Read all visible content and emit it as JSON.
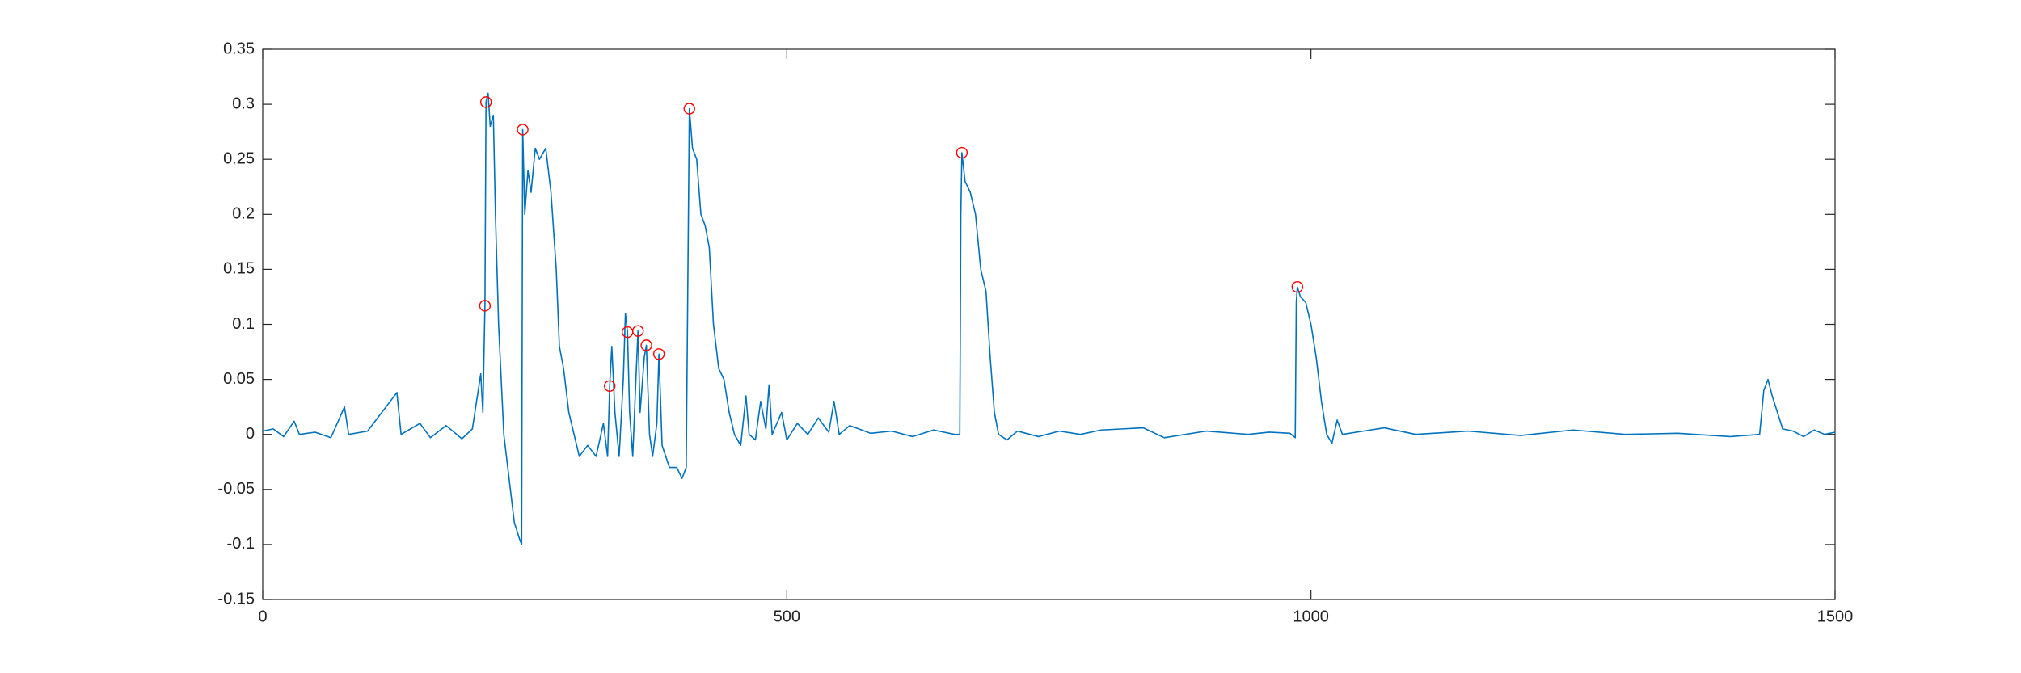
{
  "chart_data": {
    "type": "line",
    "x": [
      0,
      10,
      20,
      30,
      35,
      50,
      65,
      78,
      82,
      100,
      128,
      132,
      150,
      160,
      175,
      190,
      200,
      208,
      210,
      212,
      213,
      215,
      217,
      220,
      222,
      225,
      230,
      235,
      240,
      245,
      247,
      248,
      250,
      253,
      256,
      260,
      264,
      270,
      275,
      280,
      283,
      287,
      292,
      297,
      302,
      310,
      318,
      325,
      329,
      331,
      333,
      336,
      340,
      344,
      346,
      348,
      350,
      353,
      356,
      358,
      360,
      364,
      366,
      369,
      372,
      376,
      378,
      381,
      388,
      395,
      400,
      404,
      407,
      410,
      414,
      418,
      422,
      426,
      430,
      435,
      440,
      445,
      450,
      456,
      461,
      464,
      470,
      475,
      480,
      483,
      486,
      495,
      500,
      510,
      520,
      530,
      540,
      545,
      550,
      560,
      580,
      600,
      620,
      640,
      660,
      665,
      666,
      667,
      670,
      675,
      680,
      685,
      690,
      694,
      698,
      702,
      710,
      720,
      740,
      760,
      780,
      800,
      840,
      860,
      900,
      940,
      960,
      980,
      985,
      986,
      987,
      990,
      995,
      1000,
      1005,
      1010,
      1015,
      1020,
      1025,
      1030,
      1050,
      1070,
      1100,
      1150,
      1200,
      1250,
      1300,
      1350,
      1400,
      1428,
      1432,
      1436,
      1440,
      1445,
      1450,
      1460,
      1470,
      1480,
      1490,
      1500
    ],
    "series": [
      {
        "color": "#0072bd",
        "values": [
          0.003,
          0.005,
          -0.002,
          0.012,
          0.0,
          0.002,
          -0.003,
          0.025,
          0.0,
          0.003,
          0.038,
          0.0,
          0.01,
          -0.003,
          0.008,
          -0.004,
          0.005,
          0.055,
          0.02,
          0.117,
          0.302,
          0.31,
          0.28,
          0.29,
          0.2,
          0.1,
          0.0,
          -0.04,
          -0.08,
          -0.095,
          -0.1,
          0.277,
          0.2,
          0.24,
          0.22,
          0.26,
          0.25,
          0.26,
          0.22,
          0.15,
          0.08,
          0.06,
          0.02,
          0.0,
          -0.02,
          -0.01,
          -0.02,
          0.01,
          -0.02,
          0.044,
          0.08,
          0.02,
          -0.02,
          0.05,
          0.11,
          0.093,
          0.02,
          -0.02,
          0.05,
          0.094,
          0.02,
          0.07,
          0.081,
          0.0,
          -0.02,
          0.01,
          0.073,
          -0.01,
          -0.03,
          -0.03,
          -0.04,
          -0.03,
          0.296,
          0.26,
          0.25,
          0.2,
          0.19,
          0.17,
          0.1,
          0.06,
          0.05,
          0.02,
          0.0,
          -0.01,
          0.035,
          0.0,
          -0.005,
          0.03,
          0.005,
          0.045,
          0.0,
          0.02,
          -0.005,
          0.01,
          0.0,
          0.015,
          0.002,
          0.03,
          0.0,
          0.008,
          0.001,
          0.003,
          -0.002,
          0.004,
          0.0,
          0.0,
          0.2,
          0.256,
          0.23,
          0.22,
          0.2,
          0.15,
          0.13,
          0.07,
          0.02,
          0.0,
          -0.005,
          0.003,
          -0.002,
          0.003,
          0.0,
          0.004,
          0.006,
          -0.003,
          0.003,
          0.0,
          0.002,
          0.001,
          -0.003,
          0.12,
          0.134,
          0.125,
          0.12,
          0.1,
          0.07,
          0.03,
          0.0,
          -0.008,
          0.013,
          0.0,
          0.003,
          0.006,
          0.0,
          0.003,
          -0.001,
          0.004,
          0.0,
          0.001,
          -0.002,
          0.0,
          0.04,
          0.05,
          0.035,
          0.02,
          0.005,
          0.003,
          -0.002,
          0.004,
          0.0,
          0.002
        ]
      }
    ],
    "peaks": {
      "color": "#ff0000",
      "x": [
        212,
        213,
        248,
        331,
        348,
        358,
        366,
        378,
        407,
        667,
        987
      ],
      "values": [
        0.117,
        0.302,
        0.277,
        0.044,
        0.093,
        0.094,
        0.081,
        0.073,
        0.296,
        0.256,
        0.134
      ]
    },
    "xlim": [
      0,
      1500
    ],
    "xticks": [
      0,
      500,
      1000,
      1500
    ],
    "ylim": [
      -0.15,
      0.35
    ],
    "yticks": [
      -0.15,
      -0.1,
      -0.05,
      0,
      0.05,
      0.1,
      0.15,
      0.2,
      0.25,
      0.3,
      0.35
    ]
  }
}
